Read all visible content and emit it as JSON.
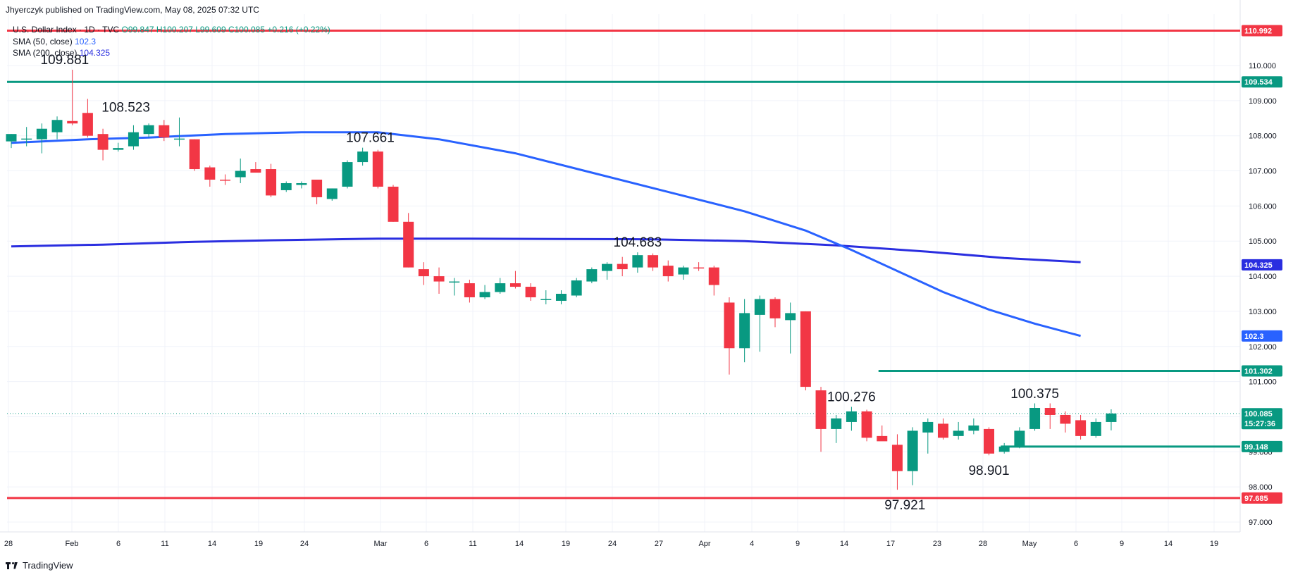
{
  "header": {
    "publisher": "Jhyerczyk published on TradingView.com, May 08, 2025 07:32 UTC",
    "symbol": "U.S. Dollar Index · 1D · TVC",
    "ohlc": "O99.847 H100.207 L99.609 C100.085 +0.216 (+0.22%)",
    "sma50_label": "SMA (50, close)",
    "sma50_value": "102.3",
    "sma200_label": "SMA (200, close)",
    "sma200_value": "104.325"
  },
  "footer": {
    "brand": "TradingView"
  },
  "colors": {
    "up": "#089981",
    "down": "#f23645",
    "sma50": "#2962ff",
    "sma200": "#2a2ee0",
    "resistance": "#f23645",
    "level": "#089981"
  },
  "chart_data": {
    "type": "candlestick",
    "title": "U.S. Dollar Index · 1D · TVC",
    "ylim": [
      96.5,
      111.2
    ],
    "y_ticks": [
      "97.000",
      "98.000",
      "99.000",
      "100.000",
      "101.000",
      "102.000",
      "103.000",
      "104.000",
      "105.000",
      "106.000",
      "107.000",
      "108.000",
      "109.000",
      "110.000"
    ],
    "x_ticks": [
      "28",
      "Feb",
      "6",
      "11",
      "14",
      "19",
      "24",
      "Mar",
      "6",
      "11",
      "14",
      "19",
      "24",
      "27",
      "Apr",
      "4",
      "9",
      "14",
      "17",
      "23",
      "28",
      "May",
      "6",
      "9",
      "14",
      "19"
    ],
    "candles": [
      {
        "o": 107.84,
        "h": 108.05,
        "l": 107.65,
        "c": 108.05
      },
      {
        "o": 107.9,
        "h": 108.25,
        "l": 107.7,
        "c": 107.92
      },
      {
        "o": 107.9,
        "h": 108.35,
        "l": 107.5,
        "c": 108.2
      },
      {
        "o": 108.1,
        "h": 108.55,
        "l": 107.9,
        "c": 108.45
      },
      {
        "o": 108.42,
        "h": 109.88,
        "l": 108.3,
        "c": 108.35
      },
      {
        "o": 108.65,
        "h": 109.05,
        "l": 107.95,
        "c": 108.0
      },
      {
        "o": 108.05,
        "h": 108.2,
        "l": 107.3,
        "c": 107.6
      },
      {
        "o": 107.6,
        "h": 107.8,
        "l": 107.55,
        "c": 107.65
      },
      {
        "o": 107.7,
        "h": 108.3,
        "l": 107.6,
        "c": 108.1
      },
      {
        "o": 108.05,
        "h": 108.35,
        "l": 107.95,
        "c": 108.3
      },
      {
        "o": 108.3,
        "h": 108.45,
        "l": 107.85,
        "c": 107.95
      },
      {
        "o": 107.9,
        "h": 108.52,
        "l": 107.7,
        "c": 107.92
      },
      {
        "o": 107.9,
        "h": 107.9,
        "l": 107.0,
        "c": 107.05
      },
      {
        "o": 107.1,
        "h": 107.15,
        "l": 106.55,
        "c": 106.75
      },
      {
        "o": 106.75,
        "h": 106.9,
        "l": 106.6,
        "c": 106.72
      },
      {
        "o": 106.82,
        "h": 107.35,
        "l": 106.65,
        "c": 107.0
      },
      {
        "o": 107.05,
        "h": 107.25,
        "l": 106.95,
        "c": 106.95
      },
      {
        "o": 107.05,
        "h": 107.2,
        "l": 106.25,
        "c": 106.3
      },
      {
        "o": 106.45,
        "h": 106.7,
        "l": 106.4,
        "c": 106.65
      },
      {
        "o": 106.6,
        "h": 106.7,
        "l": 106.5,
        "c": 106.65
      },
      {
        "o": 106.75,
        "h": 106.75,
        "l": 106.05,
        "c": 106.25
      },
      {
        "o": 106.2,
        "h": 106.5,
        "l": 106.15,
        "c": 106.5
      },
      {
        "o": 106.55,
        "h": 107.3,
        "l": 106.5,
        "c": 107.25
      },
      {
        "o": 107.25,
        "h": 107.66,
        "l": 107.15,
        "c": 107.55
      },
      {
        "o": 107.55,
        "h": 107.6,
        "l": 106.5,
        "c": 106.55
      },
      {
        "o": 106.55,
        "h": 106.6,
        "l": 105.55,
        "c": 105.55
      },
      {
        "o": 105.55,
        "h": 105.8,
        "l": 104.25,
        "c": 104.25
      },
      {
        "o": 104.2,
        "h": 104.4,
        "l": 103.75,
        "c": 104.0
      },
      {
        "o": 104.0,
        "h": 104.25,
        "l": 103.5,
        "c": 103.85
      },
      {
        "o": 103.85,
        "h": 103.95,
        "l": 103.45,
        "c": 103.85
      },
      {
        "o": 103.8,
        "h": 103.9,
        "l": 103.25,
        "c": 103.4
      },
      {
        "o": 103.4,
        "h": 103.75,
        "l": 103.35,
        "c": 103.55
      },
      {
        "o": 103.55,
        "h": 103.95,
        "l": 103.5,
        "c": 103.8
      },
      {
        "o": 103.8,
        "h": 104.15,
        "l": 103.65,
        "c": 103.7
      },
      {
        "o": 103.7,
        "h": 103.8,
        "l": 103.3,
        "c": 103.4
      },
      {
        "o": 103.35,
        "h": 103.6,
        "l": 103.2,
        "c": 103.35
      },
      {
        "o": 103.3,
        "h": 103.6,
        "l": 103.2,
        "c": 103.5
      },
      {
        "o": 103.45,
        "h": 103.95,
        "l": 103.4,
        "c": 103.88
      },
      {
        "o": 103.85,
        "h": 104.25,
        "l": 103.8,
        "c": 104.2
      },
      {
        "o": 104.15,
        "h": 104.4,
        "l": 103.9,
        "c": 104.35
      },
      {
        "o": 104.35,
        "h": 104.55,
        "l": 104.0,
        "c": 104.2
      },
      {
        "o": 104.25,
        "h": 104.68,
        "l": 104.1,
        "c": 104.6
      },
      {
        "o": 104.6,
        "h": 104.65,
        "l": 104.15,
        "c": 104.25
      },
      {
        "o": 104.3,
        "h": 104.45,
        "l": 103.85,
        "c": 104.0
      },
      {
        "o": 104.05,
        "h": 104.3,
        "l": 103.9,
        "c": 104.25
      },
      {
        "o": 104.25,
        "h": 104.4,
        "l": 104.15,
        "c": 104.22
      },
      {
        "o": 104.25,
        "h": 104.3,
        "l": 103.45,
        "c": 103.75
      },
      {
        "o": 103.25,
        "h": 103.4,
        "l": 101.2,
        "c": 101.95
      },
      {
        "o": 101.95,
        "h": 103.35,
        "l": 101.55,
        "c": 102.95
      },
      {
        "o": 102.9,
        "h": 103.45,
        "l": 101.85,
        "c": 103.35
      },
      {
        "o": 103.35,
        "h": 103.4,
        "l": 102.55,
        "c": 102.8
      },
      {
        "o": 102.75,
        "h": 103.25,
        "l": 101.8,
        "c": 102.95
      },
      {
        "o": 103.0,
        "h": 103.0,
        "l": 100.75,
        "c": 100.85
      },
      {
        "o": 100.75,
        "h": 100.85,
        "l": 99.0,
        "c": 99.65
      },
      {
        "o": 99.65,
        "h": 100.05,
        "l": 99.25,
        "c": 99.95
      },
      {
        "o": 99.85,
        "h": 100.28,
        "l": 99.6,
        "c": 100.15
      },
      {
        "o": 100.15,
        "h": 100.2,
        "l": 99.3,
        "c": 99.4
      },
      {
        "o": 99.45,
        "h": 99.75,
        "l": 99.35,
        "c": 99.3
      },
      {
        "o": 99.2,
        "h": 99.5,
        "l": 97.92,
        "c": 98.45
      },
      {
        "o": 98.45,
        "h": 99.7,
        "l": 98.05,
        "c": 99.6
      },
      {
        "o": 99.55,
        "h": 99.95,
        "l": 98.95,
        "c": 99.85
      },
      {
        "o": 99.8,
        "h": 99.95,
        "l": 99.35,
        "c": 99.4
      },
      {
        "o": 99.45,
        "h": 99.85,
        "l": 99.35,
        "c": 99.6
      },
      {
        "o": 99.6,
        "h": 99.95,
        "l": 99.5,
        "c": 99.75
      },
      {
        "o": 99.65,
        "h": 99.7,
        "l": 98.9,
        "c": 98.95
      },
      {
        "o": 99.0,
        "h": 99.25,
        "l": 98.95,
        "c": 99.15
      },
      {
        "o": 99.15,
        "h": 99.7,
        "l": 99.1,
        "c": 99.6
      },
      {
        "o": 99.65,
        "h": 100.38,
        "l": 99.6,
        "c": 100.25
      },
      {
        "o": 100.25,
        "h": 100.38,
        "l": 99.65,
        "c": 100.05
      },
      {
        "o": 100.05,
        "h": 100.15,
        "l": 99.55,
        "c": 99.8
      },
      {
        "o": 99.9,
        "h": 100.05,
        "l": 99.35,
        "c": 99.45
      },
      {
        "o": 99.45,
        "h": 99.95,
        "l": 99.4,
        "c": 99.85
      },
      {
        "o": 99.85,
        "h": 100.21,
        "l": 99.61,
        "c": 100.09
      }
    ],
    "sma50": [
      [
        0,
        107.8
      ],
      [
        5,
        107.9
      ],
      [
        9,
        107.95
      ],
      [
        14,
        108.05
      ],
      [
        19,
        108.1
      ],
      [
        24,
        108.1
      ],
      [
        28,
        107.9
      ],
      [
        33,
        107.5
      ],
      [
        38,
        106.95
      ],
      [
        43,
        106.4
      ],
      [
        48,
        105.85
      ],
      [
        52,
        105.3
      ],
      [
        55,
        104.75
      ],
      [
        58,
        104.15
      ],
      [
        61,
        103.55
      ],
      [
        64,
        103.05
      ],
      [
        67,
        102.65
      ],
      [
        70,
        102.3
      ]
    ],
    "sma200": [
      [
        0,
        104.85
      ],
      [
        6,
        104.9
      ],
      [
        12,
        104.98
      ],
      [
        18,
        105.03
      ],
      [
        24,
        105.07
      ],
      [
        30,
        105.07
      ],
      [
        36,
        105.06
      ],
      [
        42,
        105.05
      ],
      [
        48,
        105.0
      ],
      [
        54,
        104.88
      ],
      [
        60,
        104.7
      ],
      [
        65,
        104.52
      ],
      [
        70,
        104.4
      ]
    ],
    "levels": [
      {
        "value": 110.992,
        "label": "110.992",
        "color": "#f23645"
      },
      {
        "value": 109.534,
        "label": "109.534",
        "color": "#089981"
      },
      {
        "value": 101.302,
        "label": "101.302",
        "color": "#089981",
        "from": 57
      },
      {
        "value": 99.148,
        "label": "99.148",
        "color": "#089981",
        "from": 65
      },
      {
        "value": 97.685,
        "label": "97.685",
        "color": "#f23645"
      }
    ],
    "price_tags": [
      {
        "value": 104.325,
        "label": "104.325",
        "color": "#2a2ee0"
      },
      {
        "value": 102.3,
        "label": "102.3",
        "color": "#2962ff"
      },
      {
        "value": 100.085,
        "label": "100.085",
        "sub": "15:27:36",
        "color": "#089981"
      }
    ],
    "annotations": [
      {
        "text": "109.881",
        "index": 3.5,
        "value": 109.881,
        "pos": "above"
      },
      {
        "text": "108.523",
        "index": 7.5,
        "value": 108.523,
        "pos": "above"
      },
      {
        "text": "107.661",
        "index": 23.5,
        "value": 107.661,
        "pos": "above"
      },
      {
        "text": "104.683",
        "index": 41,
        "value": 104.683,
        "pos": "above"
      },
      {
        "text": "100.276",
        "index": 55,
        "value": 100.276,
        "pos": "above"
      },
      {
        "text": "100.375",
        "index": 67,
        "value": 100.375,
        "pos": "above"
      },
      {
        "text": "97.921",
        "index": 58.5,
        "value": 97.921,
        "pos": "below"
      },
      {
        "text": "98.901",
        "index": 64,
        "value": 98.901,
        "pos": "below"
      }
    ]
  }
}
